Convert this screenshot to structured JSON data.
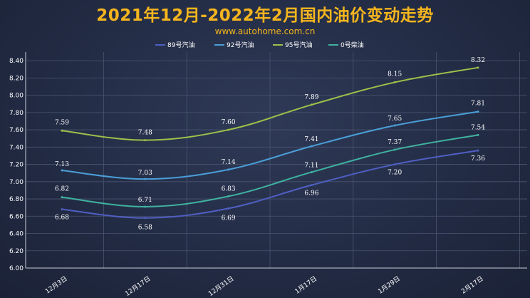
{
  "header": {
    "title": "2021年12月-2022年2月国内油价变动走势",
    "subtitle": "www.autohome.com.cn"
  },
  "chart_data": {
    "type": "line",
    "title": "2021年12月-2022年2月国内油价变动走势",
    "subtitle": "www.autohome.com.cn",
    "categories": [
      "12月3日",
      "12月17日",
      "12月31日",
      "1月17日",
      "1月29日",
      "2月17日"
    ],
    "yticks": [
      "6.00",
      "6.20",
      "6.40",
      "6.60",
      "6.80",
      "7.00",
      "7.20",
      "7.40",
      "7.60",
      "7.80",
      "8.00",
      "8.20",
      "8.40"
    ],
    "ylim": [
      6.0,
      8.5
    ],
    "grid": true,
    "legend_position": "top",
    "series": [
      {
        "name": "89号汽油",
        "color": "#4f5fc4",
        "values": [
          6.68,
          6.58,
          6.69,
          6.96,
          7.2,
          7.36
        ],
        "labels": [
          "6.68",
          "6.58",
          "6.69",
          "6.96",
          "7.20",
          "7.36"
        ]
      },
      {
        "name": "92号汽油",
        "color": "#4a9fd8",
        "values": [
          7.13,
          7.03,
          7.14,
          7.41,
          7.65,
          7.81
        ],
        "labels": [
          "7.13",
          "7.03",
          "7.14",
          "7.41",
          "7.65",
          "7.81"
        ]
      },
      {
        "name": "95号汽油",
        "color": "#9cc14a",
        "values": [
          7.59,
          7.48,
          7.6,
          7.89,
          8.15,
          8.32
        ],
        "labels": [
          "7.59",
          "7.48",
          "7.60",
          "7.89",
          "8.15",
          "8.32"
        ]
      },
      {
        "name": "0号柴油",
        "color": "#3fb2a0",
        "values": [
          6.82,
          6.71,
          6.83,
          7.11,
          7.37,
          7.54
        ],
        "labels": [
          "6.82",
          "6.71",
          "6.83",
          "7.11",
          "7.37",
          "7.54"
        ]
      }
    ]
  }
}
